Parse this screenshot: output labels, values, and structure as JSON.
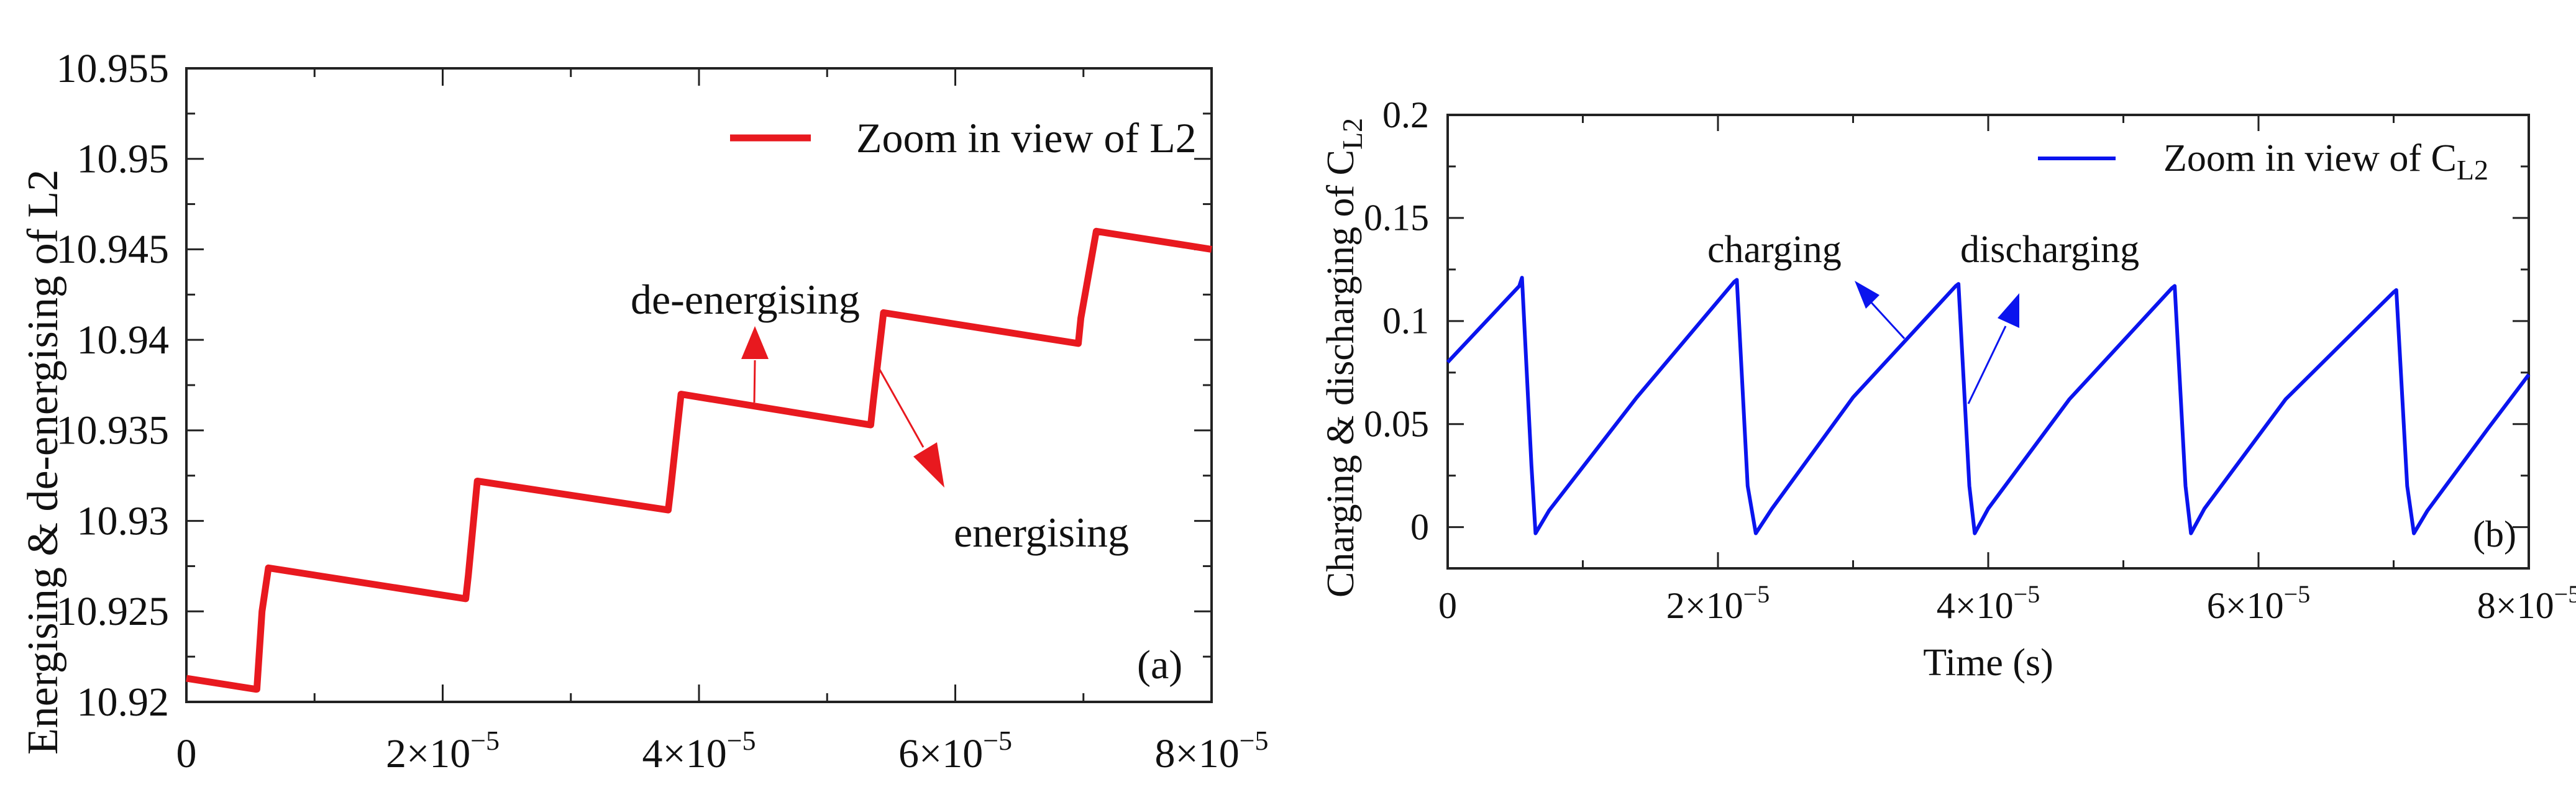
{
  "chart_data": [
    {
      "type": "line",
      "panel_label": "(a)",
      "title": "",
      "xlabel": "",
      "ylabel": "Energising & de-energising of L2",
      "xlim": [
        0,
        8e-05
      ],
      "ylim": [
        10.92,
        10.955
      ],
      "x_ticks": [
        0,
        2e-05,
        4e-05,
        6e-05,
        8e-05
      ],
      "x_tick_labels": [
        {
          "base": "0",
          "exp": ""
        },
        {
          "base": "2×10",
          "exp": "−5"
        },
        {
          "base": "4×10",
          "exp": "−5"
        },
        {
          "base": "6×10",
          "exp": "−5"
        },
        {
          "base": "8×10",
          "exp": "−5"
        }
      ],
      "y_ticks": [
        10.92,
        10.925,
        10.93,
        10.935,
        10.94,
        10.945,
        10.95,
        10.955
      ],
      "y_tick_labels": [
        "10.92",
        "10.925",
        "10.93",
        "10.935",
        "10.94",
        "10.945",
        "10.95",
        "10.955"
      ],
      "legend": {
        "label": "Zoom in view of L2",
        "position": "top-right"
      },
      "series": [
        {
          "name": "Zoom in view of L2",
          "color": "#e8191f",
          "x": [
            0,
            5.4e-06,
            5.5e-06,
            5.9e-06,
            6.4e-06,
            2.18e-05,
            2.2e-05,
            2.27e-05,
            3.76e-05,
            3.78e-05,
            3.86e-05,
            5.34e-05,
            5.36e-05,
            5.44e-05,
            6.96e-05,
            6.98e-05,
            7.1e-05,
            8e-05
          ],
          "y": [
            10.9213,
            10.9207,
            10.9207,
            10.925,
            10.9274,
            10.9257,
            10.927,
            10.9322,
            10.9306,
            10.9318,
            10.937,
            10.9353,
            10.9366,
            10.9415,
            10.9398,
            10.9412,
            10.946,
            10.945
          ]
        }
      ],
      "annotations": [
        {
          "text": "de-energising",
          "arrow_color": "#e8191f"
        },
        {
          "text": "energising",
          "arrow_color": "#e8191f"
        }
      ]
    },
    {
      "type": "line",
      "panel_label": "(b)",
      "title": "",
      "xlabel": "Time (s)",
      "ylabel": {
        "base": "Charging & discharging of C",
        "sub": "L2"
      },
      "xlim": [
        0,
        8e-05
      ],
      "ylim": [
        -0.02,
        0.2
      ],
      "x_ticks": [
        0,
        2e-05,
        4e-05,
        6e-05,
        8e-05
      ],
      "x_tick_labels": [
        {
          "base": "0",
          "exp": ""
        },
        {
          "base": "2×10",
          "exp": "−5"
        },
        {
          "base": "4×10",
          "exp": "−5"
        },
        {
          "base": "6×10",
          "exp": "−5"
        },
        {
          "base": "8×10",
          "exp": "−5"
        }
      ],
      "y_ticks": [
        0,
        0.05,
        0.1,
        0.15,
        0.2
      ],
      "y_tick_labels": [
        "0",
        "0.05",
        "0.1",
        "0.15",
        "0.2"
      ],
      "legend": {
        "label": {
          "base": "Zoom in view of C",
          "sub": "L2"
        },
        "position": "top-right"
      },
      "series": [
        {
          "name": "Zoom in view of CL2",
          "color": "#0a14ee",
          "x": [
            0,
            5.3e-06,
            5.5e-06,
            6.2e-06,
            6.5e-06,
            7.5e-06,
            1.4e-05,
            2.12e-05,
            2.14e-05,
            2.22e-05,
            2.28e-05,
            2.4e-05,
            3e-05,
            3.76e-05,
            3.78e-05,
            3.86e-05,
            3.9e-05,
            4e-05,
            4.6e-05,
            5.36e-05,
            5.38e-05,
            5.46e-05,
            5.5e-05,
            5.6e-05,
            6.2e-05,
            7e-05,
            7.02e-05,
            7.1e-05,
            7.15e-05,
            7.25e-05,
            7.7e-05,
            8e-05
          ],
          "y": [
            0.08,
            0.117,
            0.121,
            0.03,
            -0.003,
            0.008,
            0.063,
            0.119,
            0.12,
            0.02,
            -0.003,
            0.009,
            0.063,
            0.117,
            0.118,
            0.02,
            -0.003,
            0.009,
            0.062,
            0.116,
            0.117,
            0.02,
            -0.003,
            0.009,
            0.062,
            0.114,
            0.115,
            0.02,
            -0.003,
            0.008,
            0.048,
            0.074
          ]
        }
      ],
      "annotations": [
        {
          "text": "charging",
          "arrow_color": "#0a14ee"
        },
        {
          "text": "discharging",
          "arrow_color": "#0a14ee"
        }
      ]
    }
  ]
}
